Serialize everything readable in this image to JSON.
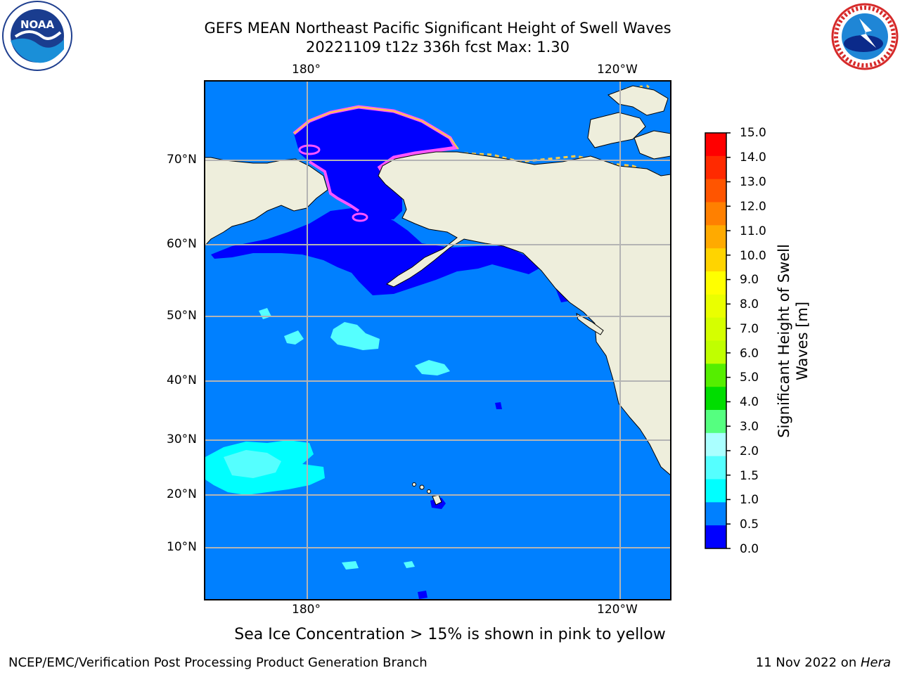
{
  "title": {
    "line1": "GEFS MEAN Northeast Pacific Significant Height of Swell Waves",
    "line2": "20221109 t12z 336h fcst   Max: 1.30"
  },
  "logos": {
    "left": {
      "text": "NOAA",
      "ring_text": "NATIONAL OCEANIC AND ATMOSPHERIC ADMINISTRATION · U.S. DEPARTMENT OF COMMERCE"
    },
    "right": {
      "ring_text": "NATIONAL WEATHER SERVICE"
    }
  },
  "map": {
    "lon_ticks_top": [
      "180°",
      "120°W"
    ],
    "lon_ticks_bottom": [
      "180°",
      "120°W"
    ],
    "lat_ticks": [
      "70°N",
      "60°N",
      "50°N",
      "40°N",
      "30°N",
      "20°N",
      "10°N"
    ],
    "colors": {
      "ocean": "#0080ff",
      "deep_low": "#0000ff",
      "land": "#eeeedc",
      "cyan": "#00ffff",
      "light_cyan": "#55ffff",
      "ice_pink": "#ff55ff",
      "ice_yellow": "#ffcc44",
      "grid": "#b4b4b4"
    }
  },
  "colorbar": {
    "label_line1": "Significant Height of Swell",
    "label_line2": "Waves [m]",
    "ticks": [
      "15.0",
      "14.0",
      "13.0",
      "12.0",
      "11.0",
      "10.0",
      "9.0",
      "8.0",
      "7.0",
      "6.0",
      "5.0",
      "4.0",
      "3.0",
      "2.0",
      "1.5",
      "1.0",
      "0.5",
      "0.0"
    ],
    "colors_top_to_bottom": [
      "#ff0000",
      "#ff2a00",
      "#ff5500",
      "#ff8000",
      "#ffaa00",
      "#ffd400",
      "#ffff00",
      "#eaff00",
      "#d5ff00",
      "#c0ff00",
      "#55ee00",
      "#00dd00",
      "#55ff80",
      "#aaffff",
      "#55ffff",
      "#00ffff",
      "#0080ff",
      "#0000ff"
    ]
  },
  "caption": "Sea Ice Concentration > 15% is shown in pink to yellow",
  "footer": {
    "left": "NCEP/EMC/Verification Post Processing Product Generation Branch",
    "right_date": "11 Nov 2022 on ",
    "right_host": "Hera"
  }
}
